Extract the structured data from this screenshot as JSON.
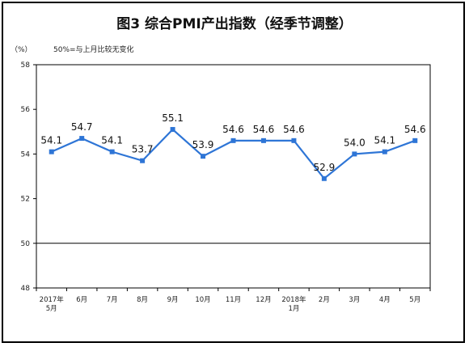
{
  "chart_data": {
    "type": "line",
    "title": "图3  综合PMI产出指数（经季节调整）",
    "unit_label": "（%）",
    "note": "50%=与上月比较无变化",
    "ylim": [
      48,
      58
    ],
    "yticks": [
      48,
      50,
      52,
      54,
      56,
      58
    ],
    "reference_line": 50,
    "categories": [
      [
        "2017年",
        "5月"
      ],
      [
        "6月"
      ],
      [
        "7月"
      ],
      [
        "8月"
      ],
      [
        "9月"
      ],
      [
        "10月"
      ],
      [
        "11月"
      ],
      [
        "12月"
      ],
      [
        "2018年",
        "1月"
      ],
      [
        "2月"
      ],
      [
        "3月"
      ],
      [
        "4月"
      ],
      [
        "5月"
      ]
    ],
    "series": [
      {
        "values": [
          54.1,
          54.7,
          54.1,
          53.7,
          55.1,
          53.9,
          54.6,
          54.6,
          54.6,
          52.9,
          54.0,
          54.1,
          54.6
        ],
        "labels": [
          "54.1",
          "54.7",
          "54.1",
          "53.7",
          "55.1",
          "53.9",
          "54.6",
          "54.6",
          "54.6",
          "52.9",
          "54.0",
          "54.1",
          "54.6"
        ],
        "color": "#2E75D6"
      }
    ],
    "grid": false,
    "legend": "none"
  }
}
